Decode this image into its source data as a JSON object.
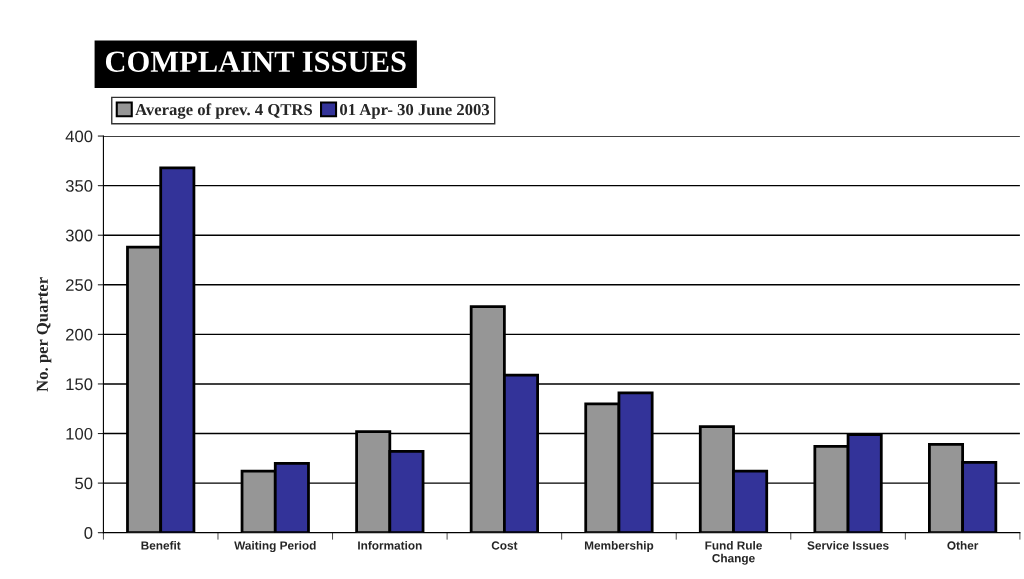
{
  "chart_data": {
    "type": "bar",
    "title": "COMPLAINT ISSUES",
    "ylabel": "No. per Quarter",
    "categories": [
      "Benefit",
      "Waiting Period",
      "Information",
      "Cost",
      "Membership",
      "Fund Rule\nChange",
      "Service Issues",
      "Other"
    ],
    "series": [
      {
        "name": "Average of prev. 4 QTRS",
        "color": "#969696",
        "values": [
          288,
          62,
          102,
          228,
          130,
          107,
          87,
          89
        ]
      },
      {
        "name": "01 Apr- 30 June 2003",
        "color": "#333399",
        "values": [
          368,
          70,
          82,
          159,
          141,
          62,
          99,
          71
        ]
      }
    ],
    "ylim": [
      0,
      400
    ],
    "yticks": [
      0,
      50,
      100,
      150,
      200,
      250,
      300,
      350,
      400
    ],
    "grid": "y",
    "legend": "top left"
  }
}
